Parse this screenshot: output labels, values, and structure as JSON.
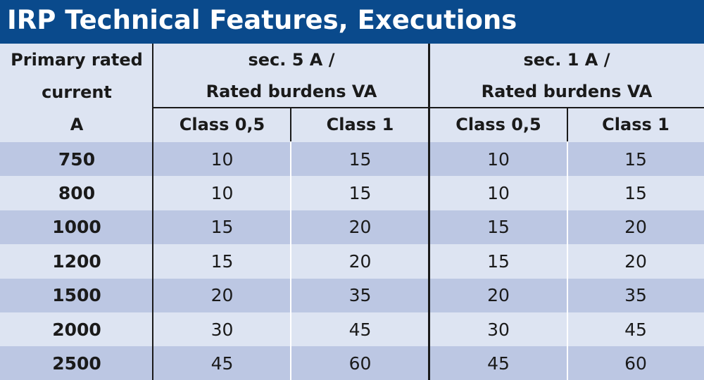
{
  "title": "IRP Technical Features, Executions",
  "header": {
    "primary_line1": "Primary rated",
    "primary_line2": "current",
    "primary_line3": "A",
    "group1_line1": "sec. 5 A /",
    "group1_line2": "Rated burdens VA",
    "group2_line1": "sec. 1 A /",
    "group2_line2": "Rated burdens VA",
    "class_a": "Class 0,5",
    "class_b": "Class 1"
  },
  "rows": [
    {
      "current": "750",
      "v1": "10",
      "v2": "15",
      "v3": "10",
      "v4": "15"
    },
    {
      "current": "800",
      "v1": "10",
      "v2": "15",
      "v3": "10",
      "v4": "15"
    },
    {
      "current": "1000",
      "v1": "15",
      "v2": "20",
      "v3": "15",
      "v4": "20"
    },
    {
      "current": "1200",
      "v1": "15",
      "v2": "20",
      "v3": "15",
      "v4": "20"
    },
    {
      "current": "1500",
      "v1": "20",
      "v2": "35",
      "v3": "20",
      "v4": "35"
    },
    {
      "current": "2000",
      "v1": "30",
      "v2": "45",
      "v3": "30",
      "v4": "45"
    },
    {
      "current": "2500",
      "v1": "45",
      "v2": "60",
      "v3": "45",
      "v4": "60"
    }
  ],
  "colors": {
    "title_bar": "#0a4a8c",
    "header_bg": "#dde4f2",
    "row_dark": "#bcc7e3",
    "row_light": "#dde4f2"
  }
}
